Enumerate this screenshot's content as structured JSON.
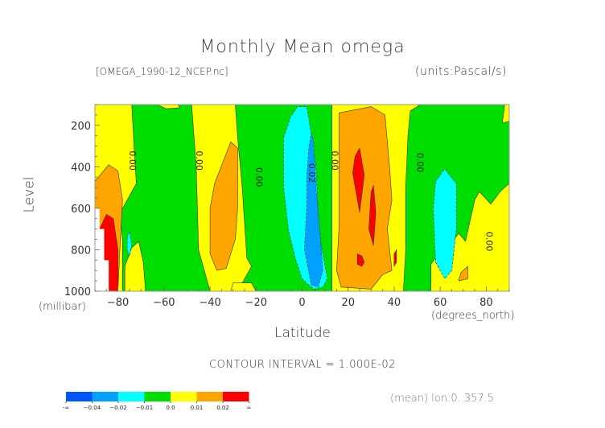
{
  "chart_data": {
    "type": "heatmap",
    "title": "Monthly Mean omega",
    "file_label": "[OMEGA_1990-12_NCEP.nc]",
    "units_label": "(units:Pascal/s)",
    "xlabel": "Latitude",
    "xunits": "(degrees_north)",
    "ylabel": "Level",
    "yunits": "(millibar)",
    "xlim": [
      -90,
      90
    ],
    "ylim": [
      1000,
      100
    ],
    "x_ticks": [
      -80,
      -60,
      -40,
      -20,
      0,
      20,
      40,
      60,
      80
    ],
    "x_tick_labels": [
      "−80",
      "−60",
      "−40",
      "−20",
      "0",
      "20",
      "40",
      "60",
      "80"
    ],
    "y_ticks": [
      200,
      400,
      600,
      800,
      1000
    ],
    "y_tick_labels": [
      "200",
      "400",
      "600",
      "800",
      "1000"
    ],
    "contour_interval_label": "CONTOUR INTERVAL = 1.000E-02",
    "mean_label": "(mean) lon:0..357.5",
    "contour_labels": [
      {
        "text": "0.00",
        "lat": -75,
        "level": 370
      },
      {
        "text": "0.00",
        "lat": -46,
        "level": 370
      },
      {
        "text": "0.00",
        "lat": -20,
        "level": 450
      },
      {
        "text": "0.02",
        "lat": 3,
        "level": 430
      },
      {
        "text": "0.00",
        "lat": 13,
        "level": 370
      },
      {
        "text": "0.00",
        "lat": 50,
        "level": 380
      },
      {
        "text": "0.00",
        "lat": 80,
        "level": 760
      }
    ],
    "levels": [
      -0.04,
      -0.02,
      -0.01,
      0.0,
      0.01,
      0.02
    ],
    "colorbar": {
      "labels": [
        "-∞",
        "−0.04",
        "−0.02",
        "−0.01",
        "0.0",
        "0.01",
        "0.02",
        "∞"
      ],
      "colors": [
        "#0055ff",
        "#00a0ff",
        "#00ffff",
        "#00dd00",
        "#ffff00",
        "#ffa500",
        "#ff0000"
      ]
    },
    "regions": [
      {
        "name": "background-green",
        "color": "#00dd00",
        "poly": [
          [
            -90,
            100
          ],
          [
            90,
            100
          ],
          [
            90,
            1000
          ],
          [
            -90,
            1000
          ]
        ]
      },
      {
        "name": "yellow-south-polar",
        "color": "#ffff00",
        "poly": [
          [
            -90,
            100
          ],
          [
            -74,
            100
          ],
          [
            -73,
            300
          ],
          [
            -72,
            480
          ],
          [
            -76,
            560
          ],
          [
            -79,
            620
          ],
          [
            -78,
            760
          ],
          [
            -78,
            1000
          ],
          [
            -90,
            1000
          ]
        ]
      },
      {
        "name": "yellow-south-60",
        "color": "#ffff00",
        "poly": [
          [
            -74,
            790
          ],
          [
            -71,
            760
          ],
          [
            -69,
            860
          ],
          [
            -68,
            1000
          ],
          [
            -77,
            1000
          ],
          [
            -77,
            880
          ]
        ]
      },
      {
        "name": "yellow-south-cap",
        "color": "#ffff00",
        "poly": [
          [
            -63,
            100
          ],
          [
            -54,
            100
          ],
          [
            -53,
            115
          ],
          [
            -59,
            120
          ]
        ]
      },
      {
        "name": "yellow-south-40",
        "color": "#ffff00",
        "poly": [
          [
            -48,
            100
          ],
          [
            -29,
            100
          ],
          [
            -28,
            260
          ],
          [
            -26,
            500
          ],
          [
            -24,
            840
          ],
          [
            -22,
            880
          ],
          [
            -28,
            1000
          ],
          [
            -40,
            1000
          ],
          [
            -45,
            800
          ],
          [
            -46,
            400
          ]
        ]
      },
      {
        "name": "yellow-south-20b",
        "color": "#ffff00",
        "poly": [
          [
            -30,
            960
          ],
          [
            -22,
            960
          ],
          [
            -20,
            1000
          ],
          [
            -31,
            1000
          ]
        ]
      },
      {
        "name": "yellow-tropics",
        "color": "#ffff00",
        "poly": [
          [
            13,
            100
          ],
          [
            51,
            100
          ],
          [
            50,
            110
          ],
          [
            47,
            130
          ],
          [
            46,
            250
          ],
          [
            45,
            500
          ],
          [
            45,
            800
          ],
          [
            44,
            1000
          ],
          [
            13,
            1000
          ],
          [
            13,
            600
          ],
          [
            13,
            300
          ]
        ]
      },
      {
        "name": "yellow-north-60",
        "color": "#ffff00",
        "poly": [
          [
            56,
            870
          ],
          [
            61,
            790
          ],
          [
            63,
            800
          ],
          [
            68,
            720
          ],
          [
            71,
            760
          ],
          [
            75,
            560
          ],
          [
            77,
            520
          ],
          [
            82,
            580
          ],
          [
            86,
            520
          ],
          [
            90,
            480
          ],
          [
            90,
            1000
          ],
          [
            56,
            1000
          ]
        ]
      },
      {
        "name": "yellow-north-cap",
        "color": "#ffff00",
        "poly": [
          [
            88,
            100
          ],
          [
            90,
            100
          ],
          [
            90,
            180
          ],
          [
            87,
            190
          ]
        ]
      },
      {
        "name": "orange-south-polar",
        "color": "#ffa500",
        "poly": [
          [
            -90,
            470
          ],
          [
            -84,
            390
          ],
          [
            -80,
            420
          ],
          [
            -78,
            560
          ],
          [
            -79,
            760
          ],
          [
            -80,
            1000
          ],
          [
            -90,
            1000
          ]
        ]
      },
      {
        "name": "orange-south-30",
        "color": "#ffa500",
        "poly": [
          [
            -31,
            280
          ],
          [
            -28,
            310
          ],
          [
            -28,
            600
          ],
          [
            -29,
            750
          ],
          [
            -33,
            890
          ],
          [
            -37,
            900
          ],
          [
            -40,
            820
          ],
          [
            -40,
            600
          ],
          [
            -38,
            480
          ]
        ]
      },
      {
        "name": "orange-tropics",
        "color": "#ffa500",
        "poly": [
          [
            16,
            140
          ],
          [
            30,
            110
          ],
          [
            36,
            150
          ],
          [
            38,
            400
          ],
          [
            39,
            560
          ],
          [
            37,
            700
          ],
          [
            39,
            900
          ],
          [
            35,
            920
          ],
          [
            30,
            990
          ],
          [
            17,
            980
          ],
          [
            15,
            900
          ],
          [
            16,
            700
          ],
          [
            16,
            400
          ]
        ]
      },
      {
        "name": "orange-north-72",
        "color": "#ffa500",
        "poly": [
          [
            69,
            910
          ],
          [
            72,
            880
          ],
          [
            72,
            940
          ],
          [
            68,
            950
          ]
        ]
      },
      {
        "name": "red-south-polar",
        "color": "#ff0000",
        "poly": [
          [
            -88,
            700
          ],
          [
            -85,
            630
          ],
          [
            -82,
            650
          ],
          [
            -80,
            800
          ],
          [
            -80,
            1000
          ],
          [
            -86,
            1000
          ],
          [
            -86,
            850
          ],
          [
            -88,
            850
          ]
        ]
      },
      {
        "name": "red-tropics-a",
        "color": "#ff0000",
        "poly": [
          [
            23,
            350
          ],
          [
            25,
            310
          ],
          [
            27,
            440
          ],
          [
            25,
            620
          ],
          [
            22,
            430
          ]
        ]
      },
      {
        "name": "red-tropics-b",
        "color": "#ff0000",
        "poly": [
          [
            30,
            520
          ],
          [
            31,
            490
          ],
          [
            32,
            620
          ],
          [
            31,
            780
          ],
          [
            29,
            700
          ]
        ]
      },
      {
        "name": "red-tropics-c",
        "color": "#ff0000",
        "poly": [
          [
            24,
            820
          ],
          [
            26,
            830
          ],
          [
            27,
            860
          ],
          [
            26,
            880
          ],
          [
            24,
            870
          ]
        ]
      },
      {
        "name": "red-tropics-d",
        "color": "#ff0000",
        "poly": [
          [
            40,
            820
          ],
          [
            41,
            800
          ],
          [
            41,
            860
          ],
          [
            40,
            880
          ]
        ]
      },
      {
        "name": "cyan-equator",
        "color": "#00ffff",
        "poly": [
          [
            -8,
            260
          ],
          [
            -5,
            160
          ],
          [
            -2,
            110
          ],
          [
            2,
            110
          ],
          [
            4,
            240
          ],
          [
            6,
            400
          ],
          [
            7,
            620
          ],
          [
            8,
            760
          ],
          [
            11,
            940
          ],
          [
            9,
            980
          ],
          [
            5,
            990
          ],
          [
            0,
            940
          ],
          [
            -3,
            840
          ],
          [
            -6,
            700
          ],
          [
            -8,
            500
          ]
        ]
      },
      {
        "name": "cyan-south-polar",
        "color": "#00ffff",
        "poly": [
          [
            -76,
            740
          ],
          [
            -75,
            710
          ],
          [
            -74,
            780
          ],
          [
            -75,
            830
          ],
          [
            -76,
            800
          ]
        ]
      },
      {
        "name": "cyan-north-60",
        "color": "#00ffff",
        "poly": [
          [
            58,
            470
          ],
          [
            62,
            410
          ],
          [
            64,
            440
          ],
          [
            67,
            480
          ],
          [
            67,
            700
          ],
          [
            65,
            900
          ],
          [
            62,
            940
          ],
          [
            58,
            860
          ],
          [
            57,
            600
          ]
        ]
      },
      {
        "name": "blue-equator",
        "color": "#00a0ff",
        "poly": [
          [
            3,
            300
          ],
          [
            4,
            240
          ],
          [
            5,
            280
          ],
          [
            6,
            500
          ],
          [
            8,
            750
          ],
          [
            9,
            900
          ],
          [
            7,
            980
          ],
          [
            4,
            970
          ],
          [
            1,
            800
          ],
          [
            2,
            600
          ],
          [
            2,
            450
          ]
        ]
      }
    ]
  }
}
